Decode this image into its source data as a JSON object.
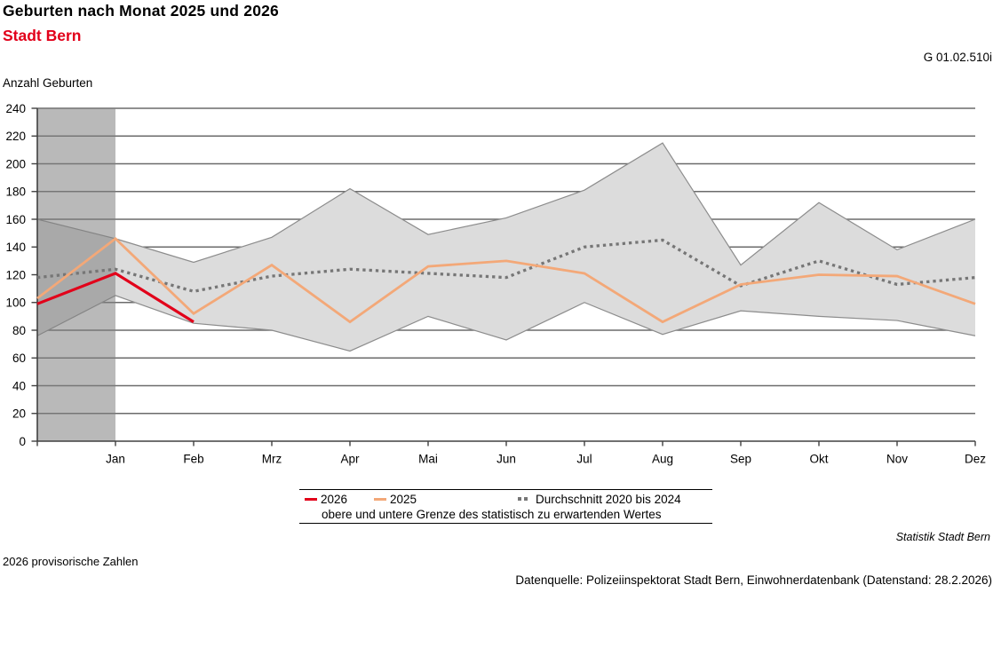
{
  "header": {
    "title": "Geburten nach Monat 2025 und 2026",
    "subtitle": "Stadt Bern",
    "chart_code": "G 01.02.510i",
    "y_axis_title": "Anzahl Geburten"
  },
  "colors": {
    "accent_red": "#e2001a",
    "line_2026": "#e2001a",
    "line_2025": "#f3a878",
    "line_avg": "#767676",
    "band_fill": "#dcdcdc",
    "band_border": "#8c8c8c",
    "highlight_column": "#808080",
    "gridline": "#6b6b6b",
    "axis": "#404040",
    "legend_band_swatch_top": "#a9a9a9",
    "legend_band_swatch_bottom": "#c9c9c9"
  },
  "chart_data": {
    "type": "line",
    "title": "Geburten nach Monat 2025 und 2026",
    "subtitle": "Stadt Bern",
    "y_axis": {
      "label": "Anzahl Geburten",
      "min": 0,
      "max": 240,
      "step": 20
    },
    "x_tick_labels": [
      "Jan",
      "Feb",
      "Mrz",
      "Apr",
      "Mai",
      "Jun",
      "Jul",
      "Aug",
      "Sep",
      "Okt",
      "Nov",
      "Dez"
    ],
    "layout": {
      "first_value_on_y_axis": true,
      "grid": true,
      "legend_position": "bottom-center",
      "highlight_column_span": "y-axis to Jan"
    },
    "series": [
      {
        "name": "2026",
        "style": "solid",
        "color": "#e2001a",
        "values": [
          99,
          121,
          86
        ]
      },
      {
        "name": "2025",
        "style": "solid",
        "color": "#f3a878",
        "values": [
          103,
          146,
          92,
          127,
          86,
          126,
          130,
          121,
          86,
          113,
          120,
          119,
          99
        ]
      },
      {
        "name": "Durchschnitt 2020 bis 2024",
        "style": "dotted",
        "color": "#767676",
        "values": [
          118,
          124,
          108,
          119,
          124,
          121,
          118,
          140,
          145,
          112,
          130,
          113,
          118
        ]
      }
    ],
    "band": {
      "name": "obere und untere Grenze des statistisch zu erwartenden Wertes",
      "fill": "#dcdcdc",
      "upper": [
        160,
        146,
        129,
        147,
        182,
        149,
        161,
        181,
        215,
        127,
        172,
        138,
        160
      ],
      "lower": [
        76,
        105,
        85,
        80,
        65,
        90,
        73,
        100,
        77,
        94,
        90,
        87,
        76
      ]
    }
  },
  "footer": {
    "attribution": "Statistik Stadt Bern",
    "note_left": "2026 provisorische Zahlen",
    "source": "Datenquelle: Polizeiinspektorat Stadt Bern, Einwohnerdatenbank (Datenstand: 28.2.2026)"
  }
}
